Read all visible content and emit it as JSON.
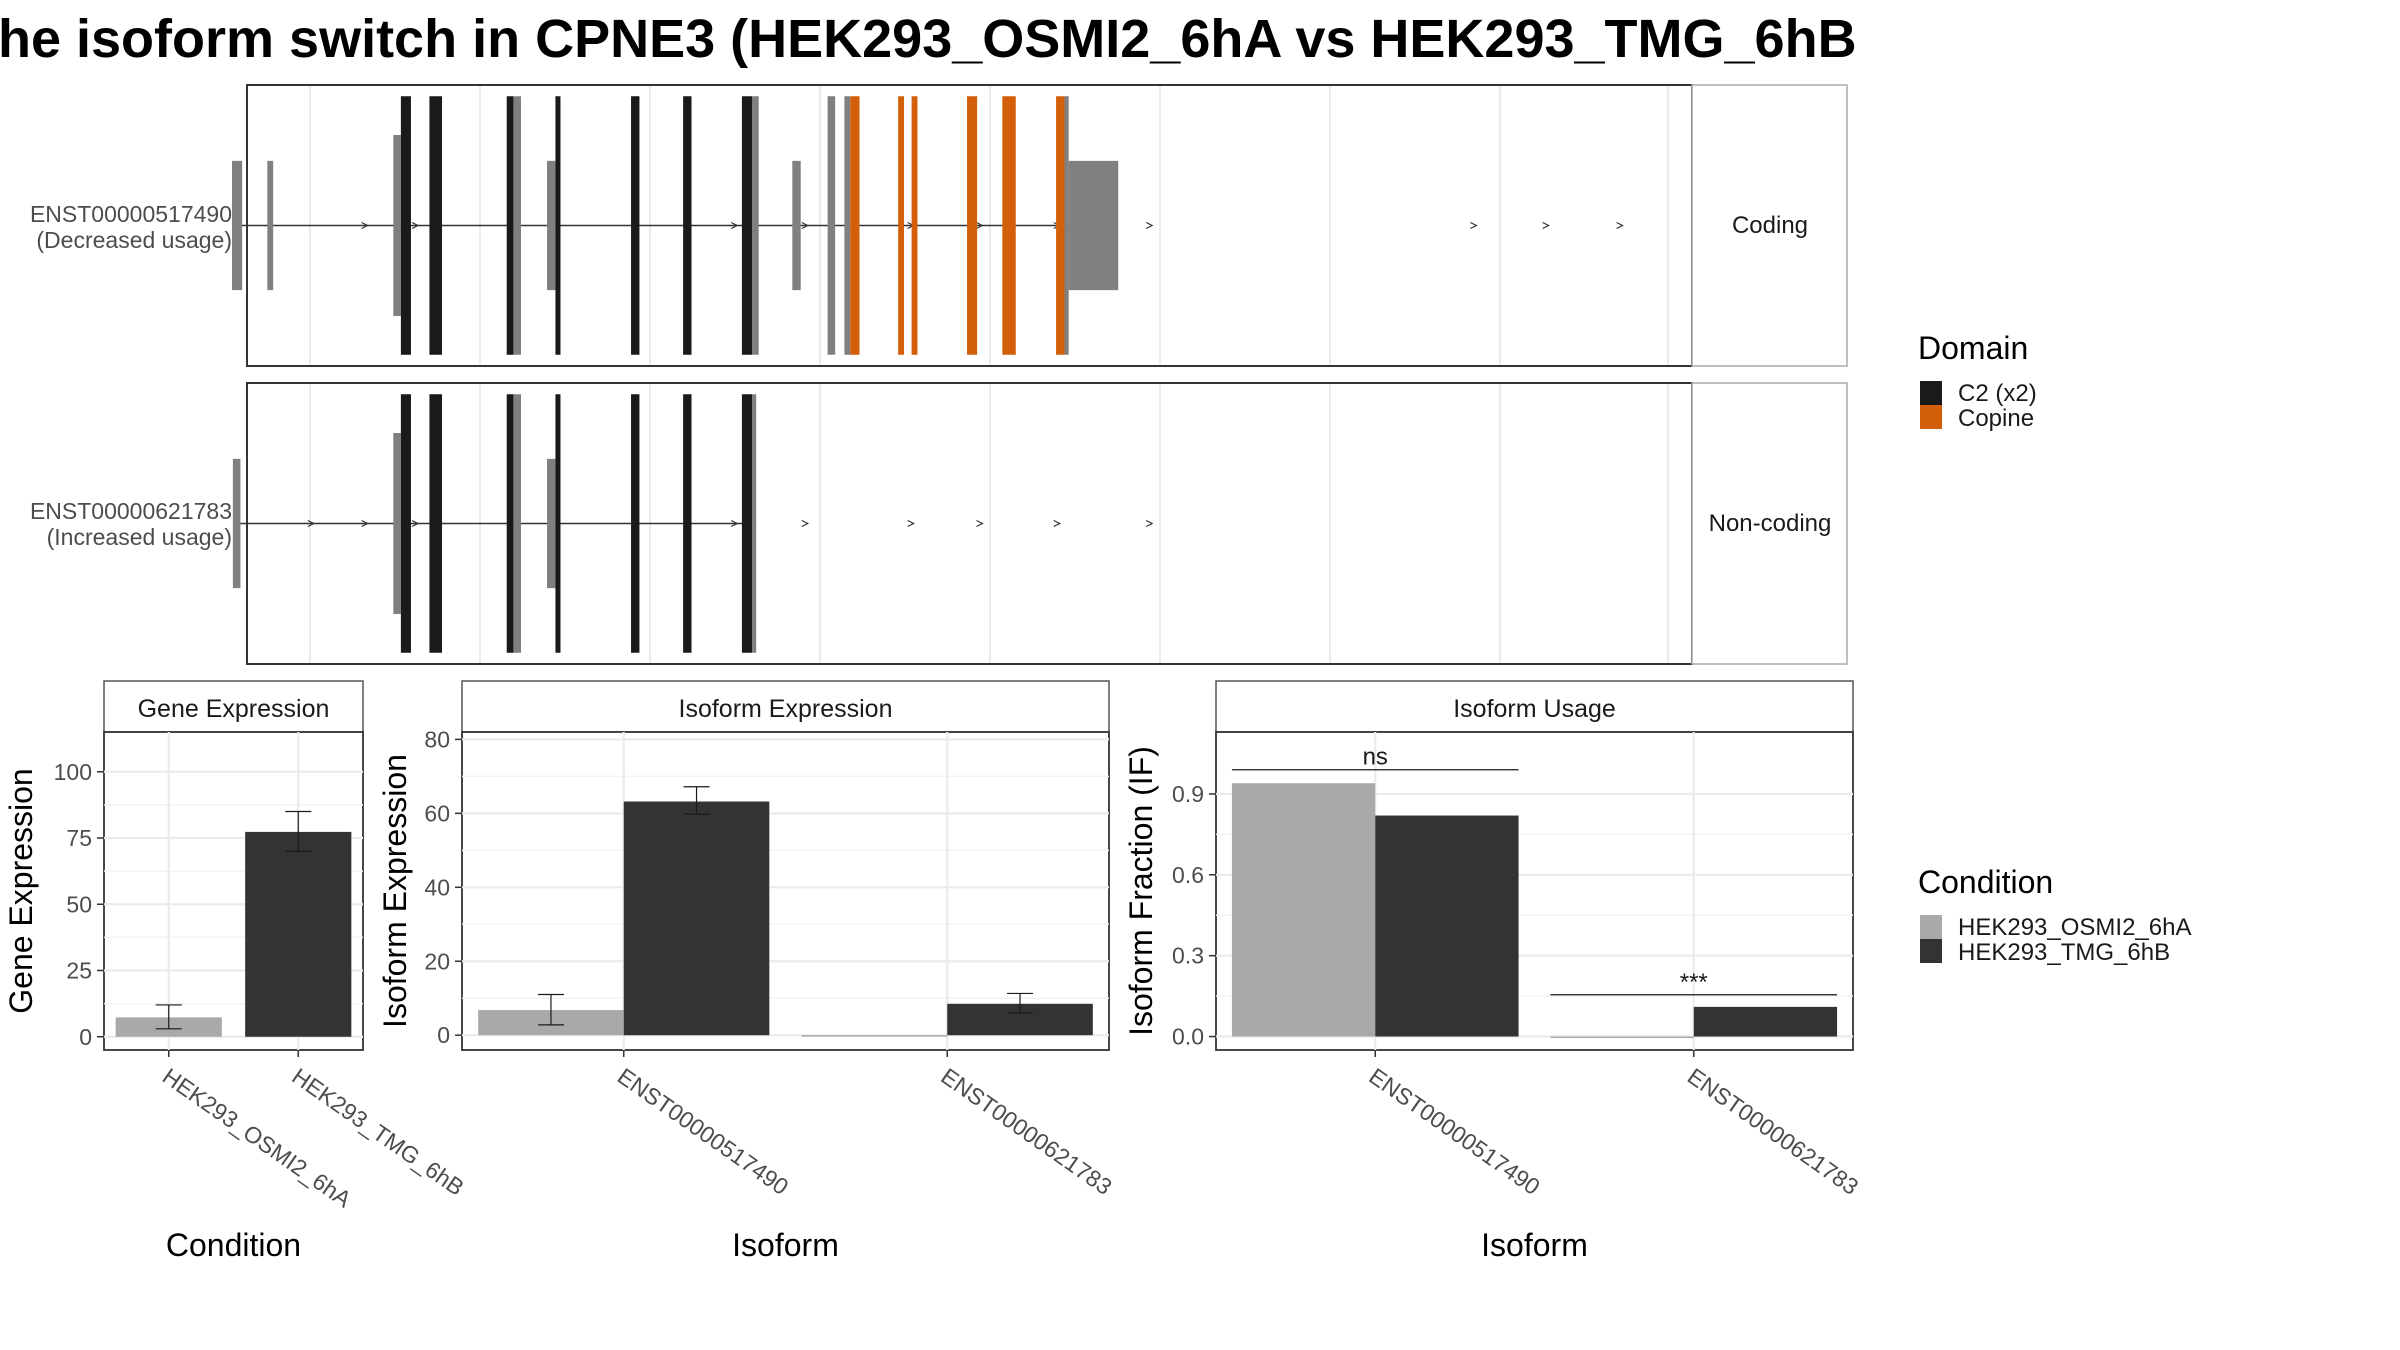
{
  "title": "he isoform switch in CPNE3 (HEK293_OSMI2_6hA vs HEK293_TMG_6hB",
  "colors": {
    "utr": "#808080",
    "c2": "#1a1a1a",
    "copine": "#d35f0a",
    "cond_a": "#a9a9a9",
    "cond_b": "#333333",
    "grid": "#ebebeb",
    "strip_border": "#555555"
  },
  "transcripts": [
    {
      "id": "ENST00000517490",
      "usage": "(Decreased usage)",
      "coding_label": "Coding",
      "utr": [
        [
          -0.92,
          0.15
        ],
        [
          -0.57,
          0.08
        ],
        [
          2.8,
          0.55
        ],
        [
          10.5,
          0.35
        ],
        [
          11.0,
          0.35
        ],
        [
          14.5,
          0.55
        ],
        [
          17.6,
          0.4
        ],
        [
          21.4,
          0.55
        ],
        [
          23.7,
          0.35
        ],
        [
          26.4,
          0.55
        ],
        [
          29.8,
          3.5
        ]
      ],
      "c2": [
        [
          3.3,
          0.8
        ],
        [
          5.3,
          1.0
        ],
        [
          9.9,
          0.5
        ],
        [
          12.2,
          0.5
        ],
        [
          16.8,
          0.6
        ],
        [
          19.7,
          0.6
        ],
        [
          23.0,
          0.8
        ]
      ],
      "copine": [
        [
          26.9,
          0.6
        ],
        [
          32.3,
          0.45
        ],
        [
          33.5,
          0.45
        ],
        [
          38.1,
          0.8
        ],
        [
          41.3,
          1.1
        ],
        [
          48.0,
          0.7
        ]
      ],
      "utr_start_coding": [
        [
          -1.0,
          -0.92
        ],
        [
          -0.65,
          -0.57
        ],
        [
          2.55,
          2.8
        ],
        [
          2.8,
          3.3
        ],
        [
          10.45,
          10.5
        ],
        [
          10.5,
          10.85
        ],
        [
          14.45,
          14.5
        ],
        [
          14.5,
          15.0
        ],
        [
          23.05,
          23.2
        ],
        [
          27.5,
          27.65
        ],
        [
          49.3,
          49.55
        ]
      ],
      "exons": [
        [
          -1.0,
          -0.1
        ],
        [
          -0.6,
          -0.5
        ],
        [
          2.5,
          3.0
        ],
        [
          3.3,
          4.1
        ],
        [
          5.3,
          6.3
        ],
        [
          10.4,
          10.9
        ],
        [
          11.1,
          11.4
        ],
        [
          14.4,
          14.9
        ],
        [
          15.0,
          15.5
        ],
        [
          20.0,
          20.6
        ],
        [
          25.0,
          25.6
        ],
        [
          30.1,
          30.5
        ],
        [
          36.2,
          36.7
        ],
        [
          46.6,
          47.4
        ],
        [
          50.3,
          51.2
        ],
        [
          55.8,
          56.2
        ],
        [
          62.1,
          62.5
        ],
        [
          65.4,
          65.8
        ],
        [
          67.5,
          68.1
        ],
        [
          73.5,
          73.9
        ],
        [
          81.0,
          81.8
        ],
        [
          84.6,
          85.5
        ],
        [
          87.6,
          88.4
        ],
        [
          89.0,
          90.0
        ]
      ],
      "arrows": [
        7.0,
        10.0,
        29.0,
        33.2,
        39.5,
        43.6,
        48.2,
        53.7,
        73.0,
        77.3,
        81.7,
        86.2
      ]
    },
    {
      "id": "ENST00000621783",
      "usage": "(Increased usage)",
      "coding_label": "Non-coding",
      "arrows": [
        3.8,
        7.0,
        10.0,
        29.0,
        33.2,
        39.5,
        43.6,
        48.2,
        53.7
      ]
    }
  ],
  "legend_domain": {
    "title": "Domain",
    "items": [
      {
        "label": "C2 (x2)",
        "color": "#1a1a1a"
      },
      {
        "label": "Copine",
        "color": "#d35f0a"
      }
    ]
  },
  "legend_condition": {
    "title": "Condition",
    "items": [
      {
        "label": "HEK293_OSMI2_6hA",
        "color": "#a9a9a9"
      },
      {
        "label": "HEK293_TMG_6hB",
        "color": "#333333"
      }
    ]
  },
  "chart_data": [
    {
      "type": "gene_structure",
      "title": "he isoform switch in CPNE3 (HEK293_OSMI2_6hA vs HEK293_TMG_6hB",
      "rows": [
        {
          "transcript": "ENST00000517490",
          "usage": "(Decreased usage)",
          "coding": "Coding"
        },
        {
          "transcript": "ENST00000621783",
          "usage": "(Increased usage)",
          "coding": "Non-coding"
        }
      ],
      "domains": [
        "C2 (x2)",
        "Copine"
      ]
    },
    {
      "type": "bar",
      "strip": "Gene Expression",
      "xlabel": "Condition",
      "ylabel": "Gene Expression",
      "ylim": [
        -5,
        115
      ],
      "yticks": [
        0,
        25,
        50,
        75,
        100
      ],
      "categories": [
        "HEK293_OSMI2_6hA",
        "HEK293_TMG_6hB"
      ],
      "values": [
        7.3,
        77.3
      ],
      "errors": [
        [
          3.0,
          12.0
        ],
        [
          70.0,
          85.0
        ]
      ]
    },
    {
      "type": "bar",
      "strip": "Isoform Expression",
      "xlabel": "Isoform",
      "ylabel": "Isoform Expression",
      "ylim": [
        -4,
        82
      ],
      "yticks": [
        0,
        20,
        40,
        60,
        80
      ],
      "categories": [
        "ENST00000517490",
        "ENST00000621783"
      ],
      "series": [
        {
          "name": "HEK293_OSMI2_6hA",
          "values": [
            6.8,
            0.0
          ],
          "errors": [
            [
              2.8,
              11.0
            ],
            [
              0.0,
              0.0
            ]
          ]
        },
        {
          "name": "HEK293_TMG_6hB",
          "values": [
            63.2,
            8.5
          ],
          "errors": [
            [
              59.8,
              67.2
            ],
            [
              6.0,
              11.3
            ]
          ]
        }
      ]
    },
    {
      "type": "bar",
      "strip": "Isoform Usage",
      "xlabel": "Isoform",
      "ylabel": "Isoform Fraction (IF)",
      "ylim": [
        -0.05,
        1.13
      ],
      "yticks": [
        "0.0",
        "0.3",
        "0.6",
        "0.9"
      ],
      "categories": [
        "ENST00000517490",
        "ENST00000621783"
      ],
      "series": [
        {
          "name": "HEK293_OSMI2_6hA",
          "values": [
            0.94,
            0.0
          ]
        },
        {
          "name": "HEK293_TMG_6hB",
          "values": [
            0.82,
            0.11
          ]
        }
      ],
      "annotations": [
        {
          "category": "ENST00000517490",
          "text": "ns",
          "y": 0.99
        },
        {
          "category": "ENST00000621783",
          "text": "***",
          "y": 0.155
        }
      ]
    }
  ]
}
